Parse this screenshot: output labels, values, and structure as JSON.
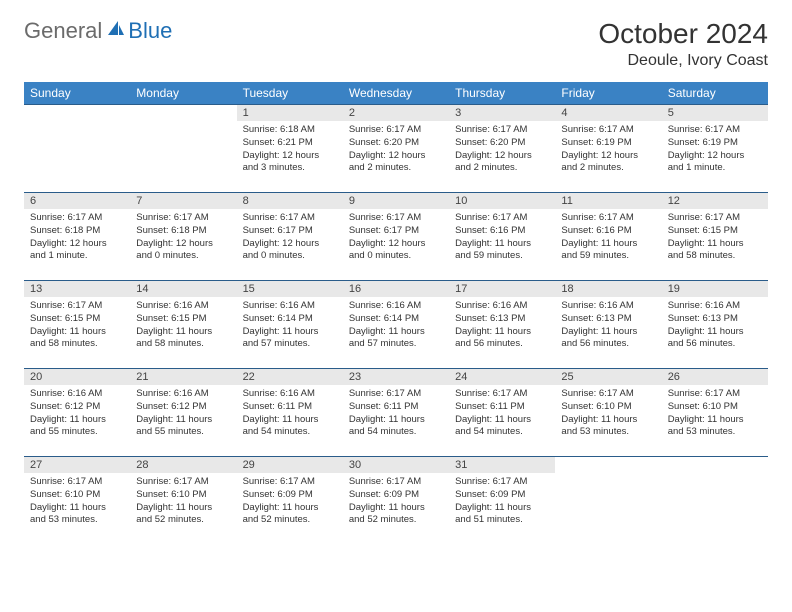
{
  "logo": {
    "general": "General",
    "blue": "Blue"
  },
  "title": "October 2024",
  "location": "Deoule, Ivory Coast",
  "day_headers": [
    "Sunday",
    "Monday",
    "Tuesday",
    "Wednesday",
    "Thursday",
    "Friday",
    "Saturday"
  ],
  "colors": {
    "header_bg": "#3a82c4",
    "header_text": "#ffffff",
    "day_num_bg": "#e8e8e8",
    "row_border": "#2a5c8a",
    "logo_gray": "#6b6b6b",
    "logo_blue": "#1f6fb4"
  },
  "weeks": [
    [
      null,
      null,
      {
        "n": "1",
        "sr": "6:18 AM",
        "ss": "6:21 PM",
        "dl": "12 hours and 3 minutes."
      },
      {
        "n": "2",
        "sr": "6:17 AM",
        "ss": "6:20 PM",
        "dl": "12 hours and 2 minutes."
      },
      {
        "n": "3",
        "sr": "6:17 AM",
        "ss": "6:20 PM",
        "dl": "12 hours and 2 minutes."
      },
      {
        "n": "4",
        "sr": "6:17 AM",
        "ss": "6:19 PM",
        "dl": "12 hours and 2 minutes."
      },
      {
        "n": "5",
        "sr": "6:17 AM",
        "ss": "6:19 PM",
        "dl": "12 hours and 1 minute."
      }
    ],
    [
      {
        "n": "6",
        "sr": "6:17 AM",
        "ss": "6:18 PM",
        "dl": "12 hours and 1 minute."
      },
      {
        "n": "7",
        "sr": "6:17 AM",
        "ss": "6:18 PM",
        "dl": "12 hours and 0 minutes."
      },
      {
        "n": "8",
        "sr": "6:17 AM",
        "ss": "6:17 PM",
        "dl": "12 hours and 0 minutes."
      },
      {
        "n": "9",
        "sr": "6:17 AM",
        "ss": "6:17 PM",
        "dl": "12 hours and 0 minutes."
      },
      {
        "n": "10",
        "sr": "6:17 AM",
        "ss": "6:16 PM",
        "dl": "11 hours and 59 minutes."
      },
      {
        "n": "11",
        "sr": "6:17 AM",
        "ss": "6:16 PM",
        "dl": "11 hours and 59 minutes."
      },
      {
        "n": "12",
        "sr": "6:17 AM",
        "ss": "6:15 PM",
        "dl": "11 hours and 58 minutes."
      }
    ],
    [
      {
        "n": "13",
        "sr": "6:17 AM",
        "ss": "6:15 PM",
        "dl": "11 hours and 58 minutes."
      },
      {
        "n": "14",
        "sr": "6:16 AM",
        "ss": "6:15 PM",
        "dl": "11 hours and 58 minutes."
      },
      {
        "n": "15",
        "sr": "6:16 AM",
        "ss": "6:14 PM",
        "dl": "11 hours and 57 minutes."
      },
      {
        "n": "16",
        "sr": "6:16 AM",
        "ss": "6:14 PM",
        "dl": "11 hours and 57 minutes."
      },
      {
        "n": "17",
        "sr": "6:16 AM",
        "ss": "6:13 PM",
        "dl": "11 hours and 56 minutes."
      },
      {
        "n": "18",
        "sr": "6:16 AM",
        "ss": "6:13 PM",
        "dl": "11 hours and 56 minutes."
      },
      {
        "n": "19",
        "sr": "6:16 AM",
        "ss": "6:13 PM",
        "dl": "11 hours and 56 minutes."
      }
    ],
    [
      {
        "n": "20",
        "sr": "6:16 AM",
        "ss": "6:12 PM",
        "dl": "11 hours and 55 minutes."
      },
      {
        "n": "21",
        "sr": "6:16 AM",
        "ss": "6:12 PM",
        "dl": "11 hours and 55 minutes."
      },
      {
        "n": "22",
        "sr": "6:16 AM",
        "ss": "6:11 PM",
        "dl": "11 hours and 54 minutes."
      },
      {
        "n": "23",
        "sr": "6:17 AM",
        "ss": "6:11 PM",
        "dl": "11 hours and 54 minutes."
      },
      {
        "n": "24",
        "sr": "6:17 AM",
        "ss": "6:11 PM",
        "dl": "11 hours and 54 minutes."
      },
      {
        "n": "25",
        "sr": "6:17 AM",
        "ss": "6:10 PM",
        "dl": "11 hours and 53 minutes."
      },
      {
        "n": "26",
        "sr": "6:17 AM",
        "ss": "6:10 PM",
        "dl": "11 hours and 53 minutes."
      }
    ],
    [
      {
        "n": "27",
        "sr": "6:17 AM",
        "ss": "6:10 PM",
        "dl": "11 hours and 53 minutes."
      },
      {
        "n": "28",
        "sr": "6:17 AM",
        "ss": "6:10 PM",
        "dl": "11 hours and 52 minutes."
      },
      {
        "n": "29",
        "sr": "6:17 AM",
        "ss": "6:09 PM",
        "dl": "11 hours and 52 minutes."
      },
      {
        "n": "30",
        "sr": "6:17 AM",
        "ss": "6:09 PM",
        "dl": "11 hours and 52 minutes."
      },
      {
        "n": "31",
        "sr": "6:17 AM",
        "ss": "6:09 PM",
        "dl": "11 hours and 51 minutes."
      },
      null,
      null
    ]
  ],
  "labels": {
    "sunrise": "Sunrise:",
    "sunset": "Sunset:",
    "daylight": "Daylight:"
  }
}
